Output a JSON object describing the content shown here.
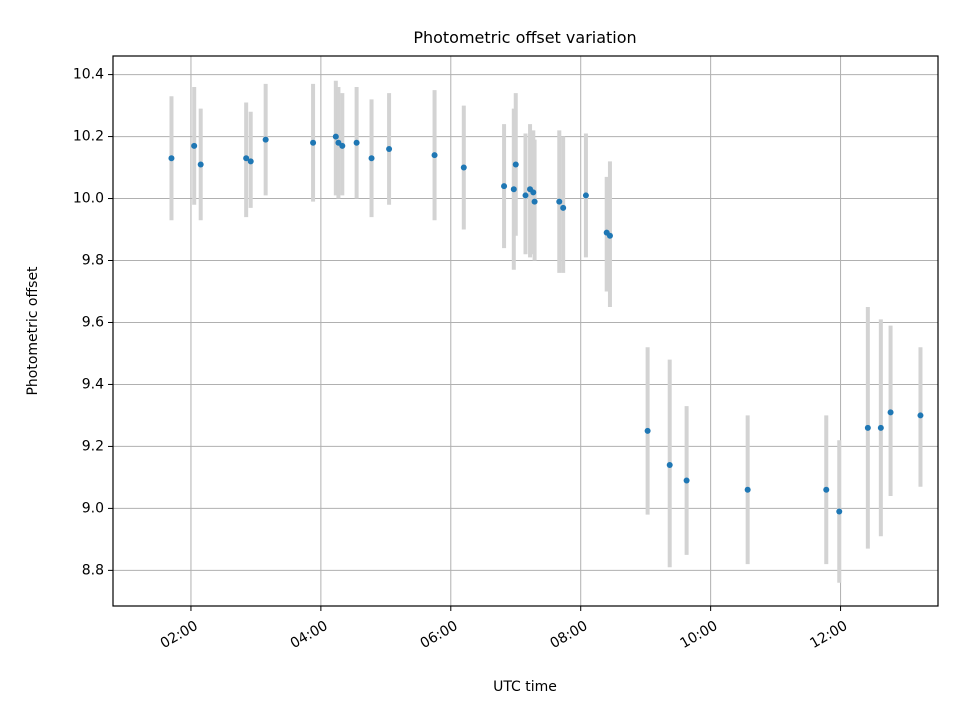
{
  "chart_data": {
    "type": "scatter",
    "title": "Photometric offset variation",
    "xlabel": "UTC time",
    "ylabel": "Photometric offset",
    "x_unit": "hours UTC",
    "xlim": [
      0.8,
      13.5
    ],
    "ylim": [
      8.685,
      10.46
    ],
    "x_ticks": [
      {
        "value": 2,
        "label": "02:00"
      },
      {
        "value": 4,
        "label": "04:00"
      },
      {
        "value": 6,
        "label": "06:00"
      },
      {
        "value": 8,
        "label": "08:00"
      },
      {
        "value": 10,
        "label": "10:00"
      },
      {
        "value": 12,
        "label": "12:00"
      }
    ],
    "y_ticks": [
      {
        "value": 8.8,
        "label": "8.8"
      },
      {
        "value": 9.0,
        "label": "9.0"
      },
      {
        "value": 9.2,
        "label": "9.2"
      },
      {
        "value": 9.4,
        "label": "9.4"
      },
      {
        "value": 9.6,
        "label": "9.6"
      },
      {
        "value": 9.8,
        "label": "9.8"
      },
      {
        "value": 10.0,
        "label": "10.0"
      },
      {
        "value": 10.2,
        "label": "10.2"
      },
      {
        "value": 10.4,
        "label": "10.4"
      }
    ],
    "grid": true,
    "series": [
      {
        "color": "#1f77b4",
        "errorbar_color": "#d3d3d3",
        "points": [
          {
            "x": 1.7,
            "y": 10.13,
            "lo": 9.93,
            "hi": 10.33
          },
          {
            "x": 2.05,
            "y": 10.17,
            "lo": 9.98,
            "hi": 10.36
          },
          {
            "x": 2.15,
            "y": 10.11,
            "lo": 9.93,
            "hi": 10.29
          },
          {
            "x": 2.85,
            "y": 10.13,
            "lo": 9.94,
            "hi": 10.31
          },
          {
            "x": 2.92,
            "y": 10.12,
            "lo": 9.97,
            "hi": 10.28
          },
          {
            "x": 3.15,
            "y": 10.19,
            "lo": 10.01,
            "hi": 10.37
          },
          {
            "x": 3.88,
            "y": 10.18,
            "lo": 9.99,
            "hi": 10.37
          },
          {
            "x": 4.23,
            "y": 10.2,
            "lo": 10.01,
            "hi": 10.38
          },
          {
            "x": 4.27,
            "y": 10.18,
            "lo": 10.0,
            "hi": 10.36
          },
          {
            "x": 4.33,
            "y": 10.17,
            "lo": 10.01,
            "hi": 10.34
          },
          {
            "x": 4.55,
            "y": 10.18,
            "lo": 10.0,
            "hi": 10.36
          },
          {
            "x": 4.78,
            "y": 10.13,
            "lo": 9.94,
            "hi": 10.32
          },
          {
            "x": 5.05,
            "y": 10.16,
            "lo": 9.98,
            "hi": 10.34
          },
          {
            "x": 5.75,
            "y": 10.14,
            "lo": 9.93,
            "hi": 10.35
          },
          {
            "x": 6.2,
            "y": 10.1,
            "lo": 9.9,
            "hi": 10.3
          },
          {
            "x": 6.82,
            "y": 10.04,
            "lo": 9.84,
            "hi": 10.24
          },
          {
            "x": 6.97,
            "y": 10.03,
            "lo": 9.77,
            "hi": 10.29
          },
          {
            "x": 7.0,
            "y": 10.11,
            "lo": 9.88,
            "hi": 10.34
          },
          {
            "x": 7.15,
            "y": 10.01,
            "lo": 9.82,
            "hi": 10.21
          },
          {
            "x": 7.22,
            "y": 10.03,
            "lo": 9.81,
            "hi": 10.24
          },
          {
            "x": 7.27,
            "y": 10.02,
            "lo": 9.82,
            "hi": 10.22
          },
          {
            "x": 7.29,
            "y": 9.99,
            "lo": 9.8,
            "hi": 10.19
          },
          {
            "x": 7.67,
            "y": 9.99,
            "lo": 9.76,
            "hi": 10.22
          },
          {
            "x": 7.73,
            "y": 9.97,
            "lo": 9.76,
            "hi": 10.2
          },
          {
            "x": 8.08,
            "y": 10.01,
            "lo": 9.81,
            "hi": 10.21
          },
          {
            "x": 8.4,
            "y": 9.89,
            "lo": 9.7,
            "hi": 10.07
          },
          {
            "x": 8.45,
            "y": 9.88,
            "lo": 9.65,
            "hi": 10.12
          },
          {
            "x": 9.03,
            "y": 9.25,
            "lo": 8.98,
            "hi": 9.52
          },
          {
            "x": 9.37,
            "y": 9.14,
            "lo": 8.81,
            "hi": 9.48
          },
          {
            "x": 9.63,
            "y": 9.09,
            "lo": 8.85,
            "hi": 9.33
          },
          {
            "x": 10.57,
            "y": 9.06,
            "lo": 8.82,
            "hi": 9.3
          },
          {
            "x": 11.78,
            "y": 9.06,
            "lo": 8.82,
            "hi": 9.3
          },
          {
            "x": 11.98,
            "y": 8.99,
            "lo": 8.76,
            "hi": 9.22
          },
          {
            "x": 12.42,
            "y": 9.26,
            "lo": 8.87,
            "hi": 9.65
          },
          {
            "x": 12.62,
            "y": 9.26,
            "lo": 8.91,
            "hi": 9.61
          },
          {
            "x": 12.77,
            "y": 9.31,
            "lo": 9.04,
            "hi": 9.59
          },
          {
            "x": 13.23,
            "y": 9.3,
            "lo": 9.07,
            "hi": 9.52
          }
        ]
      }
    ]
  }
}
